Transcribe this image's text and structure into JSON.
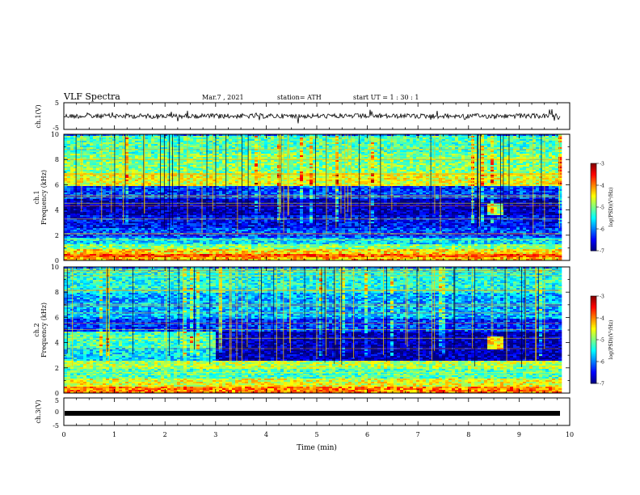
{
  "header": {
    "title": "VLF Spectra",
    "date": "Mar.7 , 2021",
    "station": "station= ATH",
    "start_ut": "start UT =   1 : 30 : 1"
  },
  "chart_data": [
    {
      "type": "line",
      "panel": "ch1-waveform",
      "ylabel": "ch.1(V)",
      "ylim": [
        -5,
        5
      ],
      "yticks": [
        "5",
        "-5"
      ],
      "xlim": [
        0,
        10
      ],
      "series": [
        {
          "values_description_level": 0
        }
      ]
    },
    {
      "type": "heatmap",
      "panel": "ch1-spectrogram",
      "ylabel": "ch.1\nFrequency (kHz)",
      "ylabel_line1": "ch.1",
      "ylabel_line2": "Frequency (kHz)",
      "ylim": [
        0,
        10
      ],
      "yticks": [
        "0",
        "2",
        "4",
        "6",
        "8",
        "10"
      ],
      "xlim": [
        0,
        10.0
      ],
      "colorbar": {
        "label": "log(PSD)(V²/Hz)",
        "range": [
          -7,
          -3
        ],
        "ticks": [
          "-3",
          "-4",
          "-5",
          "-6",
          "-7"
        ],
        "colors": [
          "#00007f",
          "#0000ff",
          "#007fff",
          "#00ffff",
          "#7fff7f",
          "#ffff00",
          "#ff7f00",
          "#ff0000",
          "#7f0000"
        ]
      },
      "bands": [
        {
          "f0": 0.0,
          "f1": 0.3,
          "level": -4.2
        },
        {
          "f0": 0.3,
          "f1": 0.6,
          "level": -3.8
        },
        {
          "f0": 0.6,
          "f1": 0.9,
          "level": -4.4
        },
        {
          "f0": 0.9,
          "f1": 1.3,
          "level": -5.0
        },
        {
          "f0": 1.3,
          "f1": 1.8,
          "level": -5.6
        },
        {
          "f0": 1.8,
          "f1": 2.6,
          "level": -6.2
        },
        {
          "f0": 2.6,
          "f1": 3.6,
          "level": -6.5
        },
        {
          "f0": 3.6,
          "f1": 5.0,
          "level": -6.8
        },
        {
          "f0": 5.0,
          "f1": 6.0,
          "level": -6.3
        },
        {
          "f0": 6.0,
          "f1": 7.0,
          "level": -4.6
        },
        {
          "f0": 7.0,
          "f1": 8.5,
          "level": -5.0
        },
        {
          "f0": 8.5,
          "f1": 10.0,
          "level": -5.2
        }
      ],
      "event": {
        "t0": 8.35,
        "t1": 8.65,
        "f0": 3.7,
        "f1": 4.6,
        "level": -4.8
      }
    },
    {
      "type": "heatmap",
      "panel": "ch2-spectrogram",
      "ylabel_line1": "ch.2",
      "ylabel_line2": "Frequency (kHz)",
      "ylim": [
        0,
        10
      ],
      "yticks": [
        "0",
        "2",
        "4",
        "6",
        "8",
        "10"
      ],
      "xlim": [
        0,
        10.0
      ],
      "colorbar": {
        "label": "log(PSD)(V²/Hz)",
        "range": [
          -7,
          -3
        ],
        "ticks": [
          "-3",
          "-4",
          "-5",
          "-6",
          "-7"
        ],
        "colors": [
          "#00007f",
          "#0000ff",
          "#007fff",
          "#00ffff",
          "#7fff7f",
          "#ffff00",
          "#ff7f00",
          "#ff0000",
          "#7f0000"
        ]
      },
      "bands": [
        {
          "f0": 0.0,
          "f1": 0.6,
          "level": -4.0
        },
        {
          "f0": 0.6,
          "f1": 1.2,
          "level": -4.6
        },
        {
          "f0": 1.2,
          "f1": 2.0,
          "level": -5.2
        },
        {
          "f0": 2.0,
          "f1": 2.6,
          "level": -4.8
        },
        {
          "f0": 2.6,
          "f1": 3.6,
          "level": -5.6
        },
        {
          "f0": 3.6,
          "f1": 5.0,
          "level": -5.2
        },
        {
          "f0": 5.0,
          "f1": 6.0,
          "level": -6.3
        },
        {
          "f0": 6.0,
          "f1": 8.0,
          "level": -5.8
        },
        {
          "f0": 8.0,
          "f1": 10.0,
          "level": -5.4
        }
      ],
      "step_change": {
        "t": 2.95,
        "f0": 2.6,
        "f1": 5.0,
        "level_after": -6.8
      },
      "event": {
        "t0": 8.35,
        "t1": 8.65,
        "f0": 3.5,
        "f1": 4.5,
        "level": -4.4
      }
    },
    {
      "type": "line",
      "panel": "ch3-waveform",
      "ylabel": "ch.3(V)",
      "ylim": [
        -5,
        5
      ],
      "yticks": [
        "5",
        "0",
        "-5"
      ],
      "xlim": [
        0,
        10
      ],
      "xlabel": "Time (min)",
      "xticks": [
        "0",
        "1",
        "2",
        "3",
        "4",
        "5",
        "6",
        "7",
        "8",
        "9",
        "10"
      ],
      "series": [
        {
          "constant_value": 0
        }
      ]
    }
  ]
}
